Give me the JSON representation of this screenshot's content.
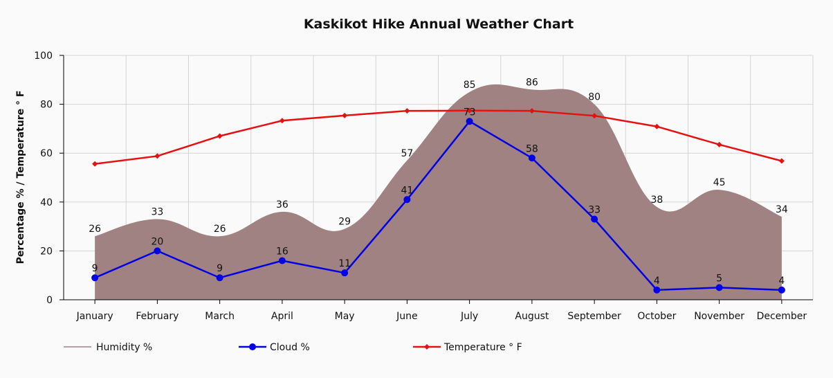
{
  "chart_data": {
    "type": "line",
    "title": "Kaskikot Hike Annual Weather Chart",
    "xlabel": "",
    "ylabel": "Percentage % / Temperature ° F",
    "ylim": [
      0,
      100
    ],
    "yticks": [
      "0",
      "20",
      "40",
      "60",
      "80",
      "100"
    ],
    "categories": [
      "January",
      "February",
      "March",
      "April",
      "May",
      "June",
      "July",
      "August",
      "September",
      "October",
      "November",
      "December"
    ],
    "grid": true,
    "legend_position": "bottom-left",
    "series": [
      {
        "name": "Humidity %",
        "kind": "area",
        "color": "#a08282",
        "values": [
          26,
          33,
          26,
          36,
          29,
          57,
          85,
          86,
          80,
          38,
          45,
          34
        ],
        "labels": [
          "26",
          "33",
          "26",
          "36",
          "29",
          "57",
          "85",
          "86",
          "80",
          "38",
          "45",
          "34"
        ]
      },
      {
        "name": "Cloud %",
        "kind": "line-circle",
        "color": "#0000e6",
        "values": [
          9,
          20,
          9,
          16,
          11,
          41,
          73,
          58,
          33,
          4,
          5,
          4
        ],
        "labels": [
          "9",
          "20",
          "9",
          "16",
          "11",
          "41",
          "73",
          "58",
          "33",
          "4",
          "5",
          "4"
        ]
      },
      {
        "name": "Temperature ° F",
        "kind": "line-diamond",
        "color": "#e61010",
        "values": [
          55.6,
          58.8,
          67,
          73.3,
          75.4,
          77.3,
          77.4,
          77.3,
          75.3,
          70.9,
          63.5,
          56.8
        ]
      }
    ]
  }
}
